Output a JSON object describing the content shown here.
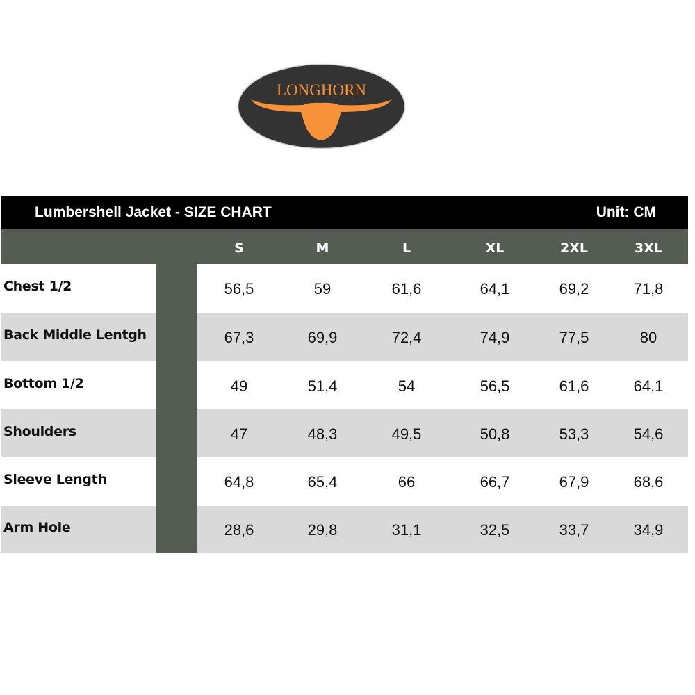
{
  "logo": {
    "text": "LONGHORN",
    "bg_color": "#333333",
    "accent_color": "#f7923a"
  },
  "title": "Lumbershell Jacket - SIZE CHART",
  "unit": "Unit: CM",
  "colors": {
    "title_bar": "#000000",
    "header": "#555c52",
    "stripe_row": "#d9d9d9"
  },
  "sizes": [
    "S",
    "M",
    "L",
    "XL",
    "2XL",
    "3XL"
  ],
  "rows": [
    {
      "label": "Chest 1/2",
      "values": [
        "56,5",
        "59",
        "61,6",
        "64,1",
        "69,2",
        "71,8"
      ]
    },
    {
      "label": "Back Middle Lentgh",
      "values": [
        "67,3",
        "69,9",
        "72,4",
        "74,9",
        "77,5",
        "80"
      ]
    },
    {
      "label": "Bottom 1/2",
      "values": [
        "49",
        "51,4",
        "54",
        "56,5",
        "61,6",
        "64,1"
      ]
    },
    {
      "label": "Shoulders",
      "values": [
        "47",
        "48,3",
        "49,5",
        "50,8",
        "53,3",
        "54,6"
      ]
    },
    {
      "label": "Sleeve Length",
      "values": [
        "64,8",
        "65,4",
        "66",
        "66,7",
        "67,9",
        "68,6"
      ]
    },
    {
      "label": "Arm Hole",
      "values": [
        "28,6",
        "29,8",
        "31,1",
        "32,5",
        "33,7",
        "34,9"
      ]
    }
  ]
}
